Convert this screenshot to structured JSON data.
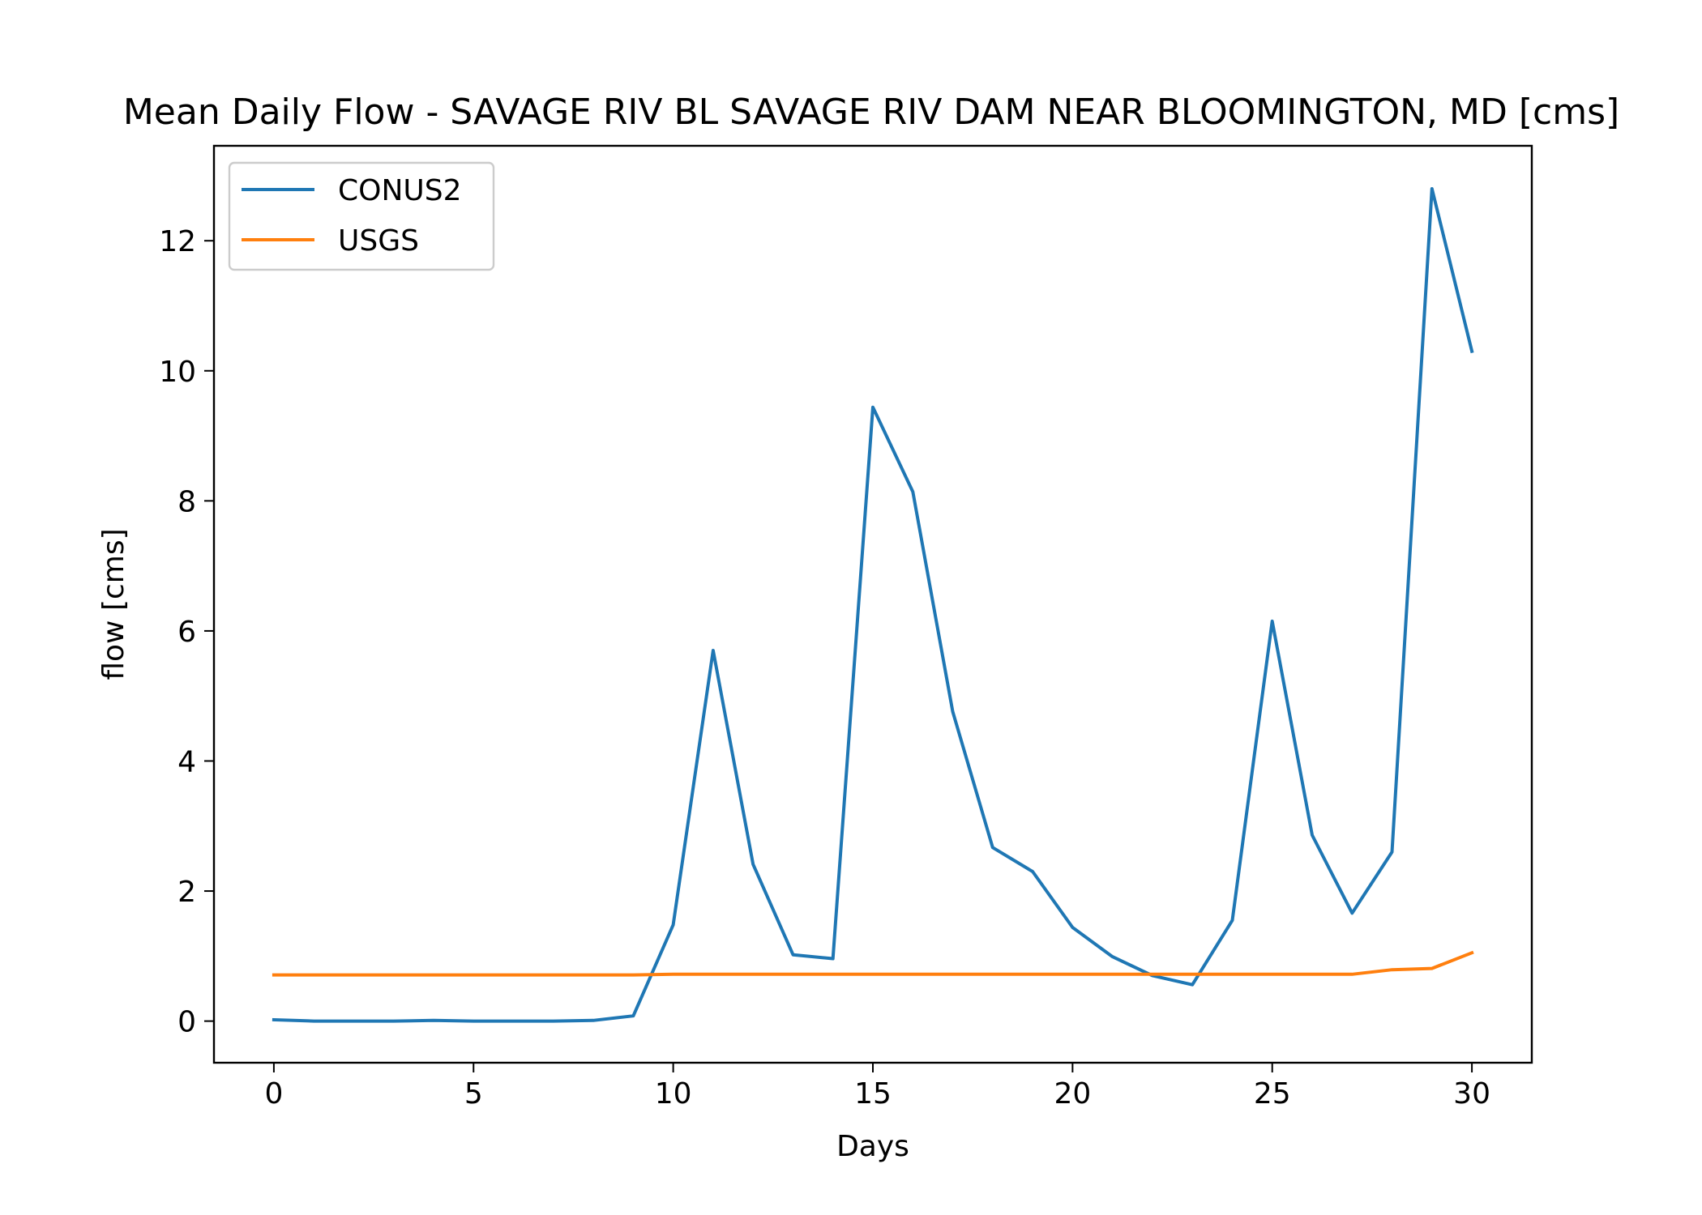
{
  "chart_data": {
    "type": "line",
    "title": "Mean Daily Flow - SAVAGE RIV BL SAVAGE RIV DAM NEAR BLOOMINGTON, MD [cms]",
    "xlabel": "Days",
    "ylabel": "flow [cms]",
    "xlim": [
      -1.5,
      31.5
    ],
    "ylim": [
      -0.64,
      13.46
    ],
    "xticks": [
      0,
      5,
      10,
      15,
      20,
      25,
      30
    ],
    "yticks": [
      0,
      2,
      4,
      6,
      8,
      10,
      12
    ],
    "grid": false,
    "legend": {
      "placement": "upper-left",
      "entries": [
        "CONUS2",
        "USGS"
      ]
    },
    "x": [
      0,
      1,
      2,
      3,
      4,
      5,
      6,
      7,
      8,
      9,
      10,
      11,
      12,
      13,
      14,
      15,
      16,
      17,
      18,
      19,
      20,
      21,
      22,
      23,
      24,
      25,
      26,
      27,
      28,
      29,
      30
    ],
    "series": [
      {
        "name": "CONUS2",
        "color": "#1f77b4",
        "values": [
          0.02,
          0.0,
          0.0,
          0.0,
          0.01,
          0.0,
          0.0,
          0.0,
          0.01,
          0.08,
          1.48,
          5.7,
          2.41,
          1.02,
          0.96,
          9.44,
          8.14,
          4.76,
          2.67,
          2.3,
          1.44,
          0.99,
          0.7,
          0.56,
          1.55,
          6.15,
          2.86,
          1.66,
          2.6,
          12.8,
          10.3
        ]
      },
      {
        "name": "USGS",
        "color": "#ff7f0e",
        "values": [
          0.71,
          0.71,
          0.71,
          0.71,
          0.71,
          0.71,
          0.71,
          0.71,
          0.71,
          0.71,
          0.72,
          0.72,
          0.72,
          0.72,
          0.72,
          0.72,
          0.72,
          0.72,
          0.72,
          0.72,
          0.72,
          0.72,
          0.72,
          0.72,
          0.72,
          0.72,
          0.72,
          0.72,
          0.79,
          0.81,
          1.05
        ]
      }
    ]
  }
}
